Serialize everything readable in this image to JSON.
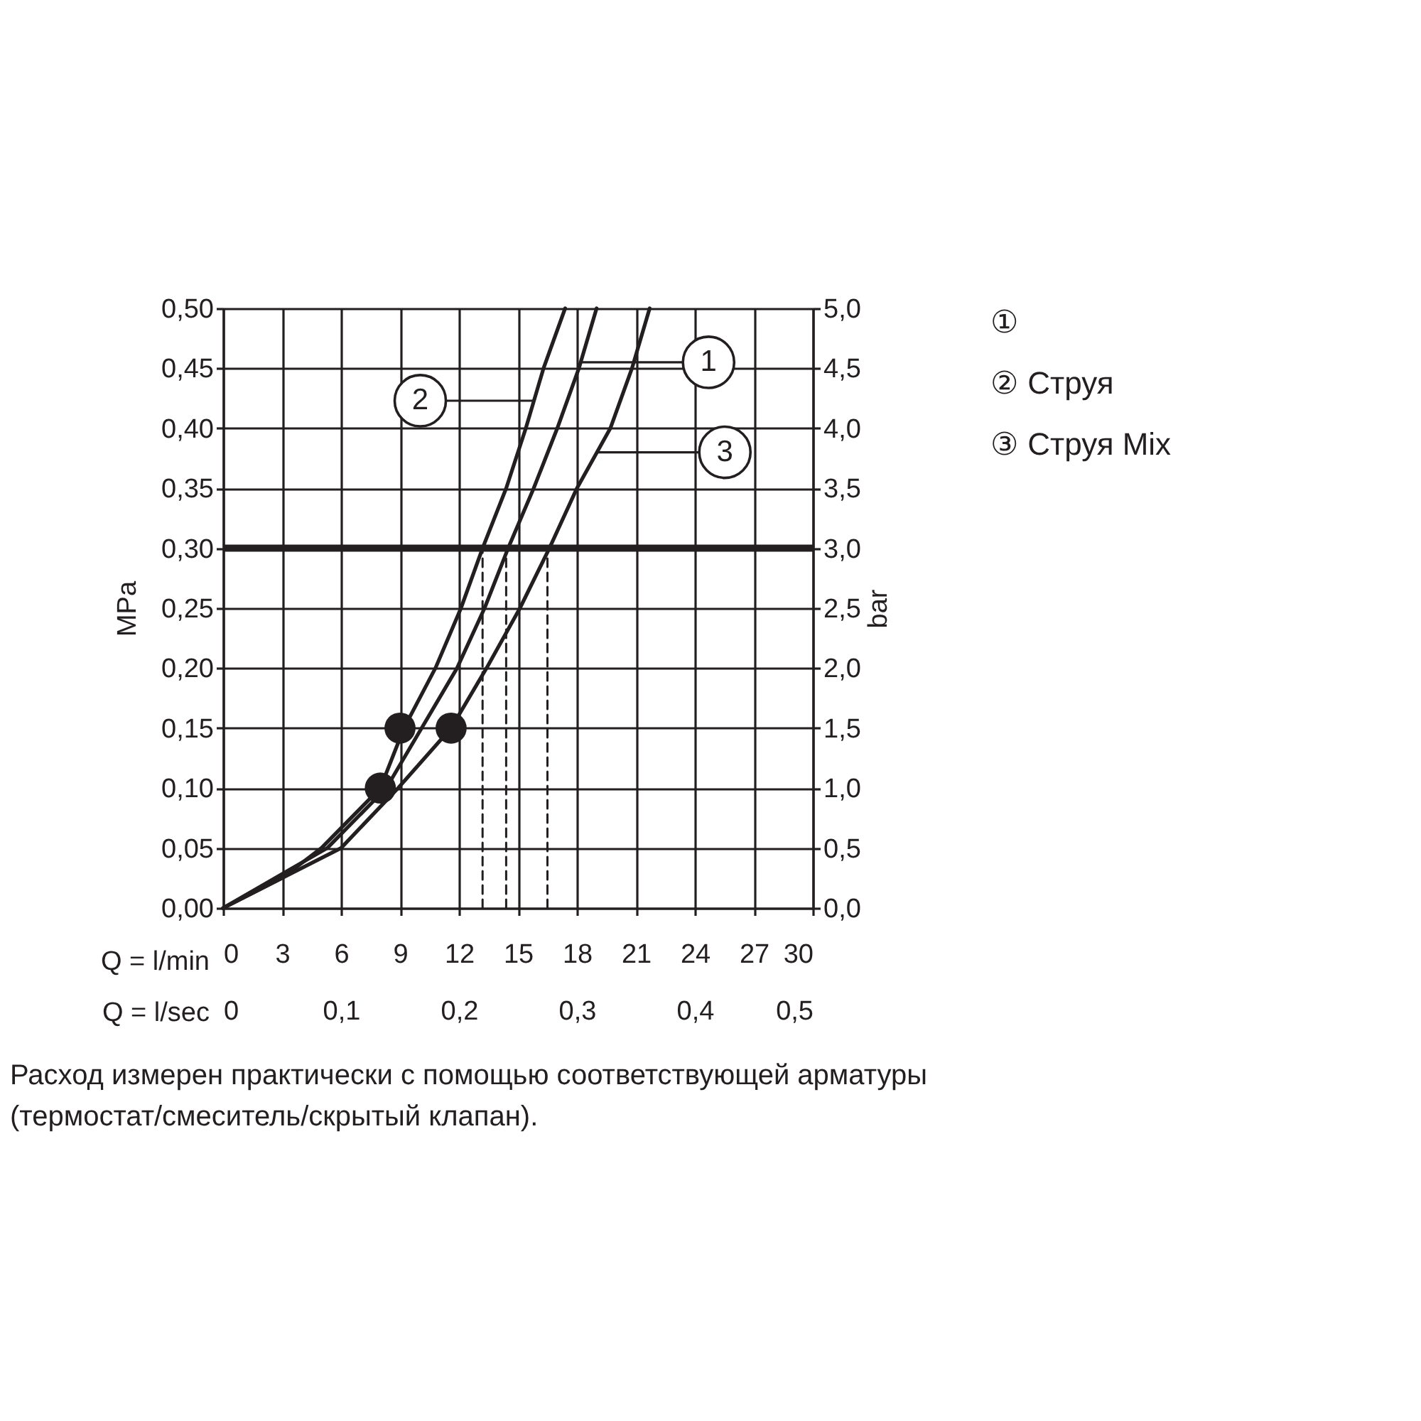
{
  "chart_data": {
    "type": "line",
    "xlabel": "Q = l/min",
    "ylabel": "MPa",
    "y2label": "bar",
    "x2label": "Q = l/sec",
    "xlim": [
      0,
      30
    ],
    "xticks": [
      0,
      3,
      6,
      9,
      12,
      15,
      18,
      21,
      24,
      27,
      30
    ],
    "ylim": [
      0,
      0.5
    ],
    "yticks": [
      {
        "value": 0,
        "label": "0,00"
      },
      {
        "value": 0.05,
        "label": "0,05"
      },
      {
        "value": 0.1,
        "label": "0,10"
      },
      {
        "value": 0.15,
        "label": "0,15"
      },
      {
        "value": 0.2,
        "label": "0,20"
      },
      {
        "value": 0.25,
        "label": "0,25"
      },
      {
        "value": 0.3,
        "label": "0,30"
      },
      {
        "value": 0.35,
        "label": "0,35"
      },
      {
        "value": 0.4,
        "label": "0,40"
      },
      {
        "value": 0.45,
        "label": "0,45"
      },
      {
        "value": 0.5,
        "label": "0,50"
      }
    ],
    "y2lim": [
      0,
      5
    ],
    "y2ticks": [
      {
        "value": 0,
        "label": "0,0"
      },
      {
        "value": 0.5,
        "label": "0,5"
      },
      {
        "value": 1,
        "label": "1,0"
      },
      {
        "value": 1.5,
        "label": "1,5"
      },
      {
        "value": 2,
        "label": "2,0"
      },
      {
        "value": 2.5,
        "label": "2,5"
      },
      {
        "value": 3,
        "label": "3,0"
      },
      {
        "value": 3.5,
        "label": "3,5"
      },
      {
        "value": 4,
        "label": "4,0"
      },
      {
        "value": 4.5,
        "label": "4,5"
      },
      {
        "value": 5,
        "label": "5,0"
      }
    ],
    "x2lim": [
      0,
      0.5
    ],
    "x2ticks": [
      0,
      {
        "value": 0.1,
        "label": "0,1"
      },
      {
        "value": 0.2,
        "label": "0,2"
      },
      {
        "value": 0.3,
        "label": "0,3"
      },
      {
        "value": 0.4,
        "label": "0,4"
      },
      {
        "value": 0.5,
        "label": "0,5"
      }
    ],
    "grid": true,
    "legend": "right",
    "line_style": "solid",
    "series": [
      {
        "name": "①",
        "color": "#231f20",
        "x": [
          0,
          5.3,
          8.3,
          10.1,
          11.9,
          13.3,
          14.5,
          15.8,
          17.0,
          18.1,
          19.0
        ],
        "values": [
          0,
          0.05,
          0.1,
          0.15,
          0.2,
          0.25,
          0.3,
          0.35,
          0.4,
          0.45,
          0.5
        ]
      },
      {
        "name": "② Струя",
        "color": "#231f20",
        "x": [
          0,
          3,
          5,
          8,
          9.2,
          10.8,
          12.1,
          13.2,
          14.4,
          15.4,
          16.3,
          17.4
        ],
        "values": [
          0,
          0.025,
          0.05,
          0.1,
          0.15,
          0.2,
          0.25,
          0.3,
          0.35,
          0.4,
          0.45,
          0.5
        ]
      },
      {
        "name": "③ Струя Mix",
        "color": "#231f20",
        "x": [
          0,
          6.0,
          8.9,
          11.6,
          13.4,
          15.1,
          16.6,
          18.0,
          19.7,
          20.8,
          21.7
        ],
        "values": [
          0,
          0.05,
          0.1,
          0.15,
          0.2,
          0.25,
          0.3,
          0.35,
          0.4,
          0.45,
          0.5
        ]
      },
      {
        "type": "scatter",
        "marker": "circle",
        "color": "#231f20",
        "x": [
          8,
          9,
          11.6
        ],
        "values": [
          0.1,
          0.15,
          0.15
        ]
      },
      {
        "line_style": "dashed",
        "color": "#231f20",
        "x": [
          13.2,
          13.2
        ],
        "values": [
          0,
          0.3
        ]
      },
      {
        "line_style": "dashed",
        "color": "#231f20",
        "x": [
          14.4,
          14.4
        ],
        "values": [
          0,
          0.3
        ]
      },
      {
        "line_style": "dashed",
        "color": "#231f20",
        "x": [
          16.5,
          16.5
        ],
        "values": [
          0,
          0.3
        ]
      }
    ],
    "ref_lines": [
      {
        "axis": "y",
        "value": 0.3,
        "color": "#231f20"
      }
    ],
    "annotations": [
      "1",
      "2",
      "3",
      "Расход измерен практически с помощью соответствующей арматуры (термостат/смеситель/скрытый клапан)."
    ]
  }
}
